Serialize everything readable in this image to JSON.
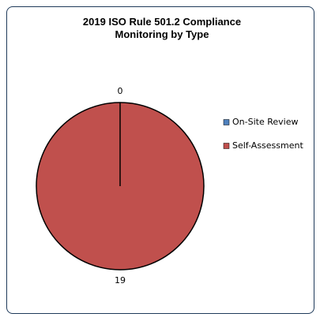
{
  "chart_data": {
    "type": "pie",
    "title": "2019 ISO Rule 501.2 Compliance Monitoring by Type",
    "categories": [
      "On-Site Review",
      "Self-Assessment"
    ],
    "values": [
      0,
      19
    ],
    "colors": [
      "#4f81bd",
      "#c0504d"
    ],
    "legend": "right"
  }
}
